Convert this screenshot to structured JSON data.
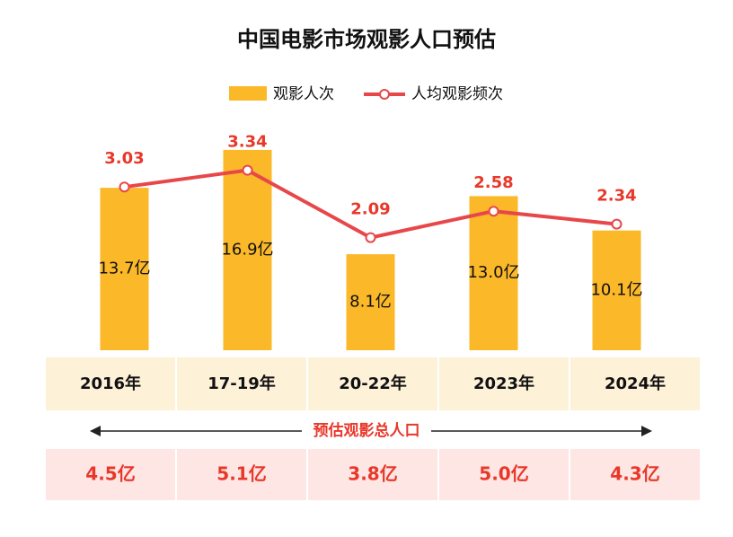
{
  "chart_data": {
    "type": "bar-line",
    "title": "中国电影市场观影人口预估",
    "categories": [
      "2016年",
      "17-19年",
      "20-22年",
      "2023年",
      "2024年"
    ],
    "series": [
      {
        "name": "观影人次",
        "type": "bar",
        "color": "#fbb829",
        "values": [
          13.7,
          16.9,
          8.1,
          13.0,
          10.1
        ],
        "value_labels": [
          "13.7亿",
          "16.9亿",
          "8.1亿",
          "13.0亿",
          "10.1亿"
        ]
      },
      {
        "name": "人均观影频次",
        "type": "line",
        "axis": "y2",
        "color": "#e8474a",
        "values": [
          3.03,
          3.34,
          2.09,
          2.58,
          2.34
        ]
      }
    ],
    "ylim": [
      0,
      20
    ],
    "y2lim": [
      0,
      4.4
    ],
    "legend": "top"
  },
  "estimate": {
    "label": "预估观影总人口",
    "values": [
      4.5,
      5.1,
      3.8,
      5.0,
      4.3
    ],
    "value_labels": [
      "4.5亿",
      "5.1亿",
      "3.8亿",
      "5.0亿",
      "4.3亿"
    ]
  }
}
